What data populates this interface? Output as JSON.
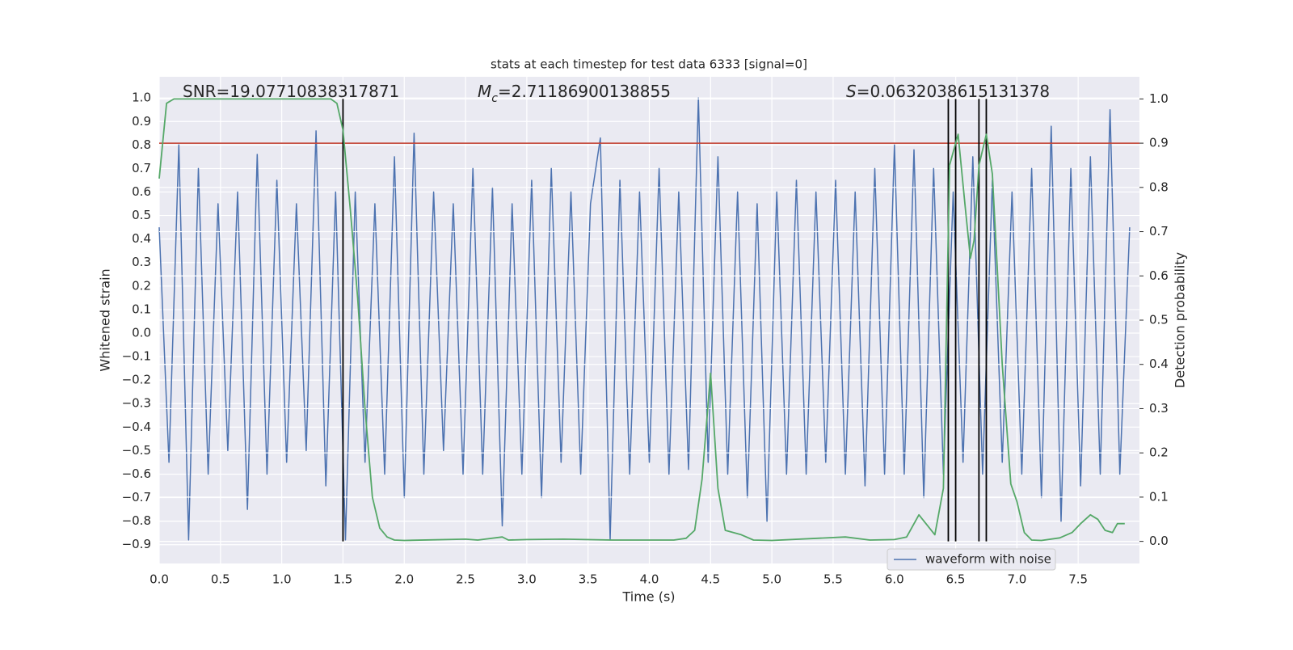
{
  "chart_data": {
    "type": "line",
    "title": "stats at each timestep for test data 6333 [signal=0]",
    "xlabel": "Time (s)",
    "ylabel": "Whitened strain",
    "y2label": "Detection probability",
    "xlim": [
      0,
      8
    ],
    "ylim": [
      -0.98,
      1.09
    ],
    "y2lim": [
      -0.05,
      1.05
    ],
    "xticks": [
      {
        "value": 0,
        "label": "0.0"
      },
      0.5,
      {
        "value": 1,
        "label": "1.0"
      },
      1.5,
      {
        "value": 2,
        "label": "2.0"
      },
      2.5,
      {
        "value": 3,
        "label": "3.0"
      },
      3.5,
      {
        "value": 4,
        "label": "4.0"
      },
      4.5,
      {
        "value": 5,
        "label": "5.0"
      },
      5.5,
      {
        "value": 6,
        "label": "6.0"
      },
      6.5,
      {
        "value": 7,
        "label": "7.0"
      },
      7.5
    ],
    "yticks": [
      {
        "value": 1,
        "label": "1.0"
      },
      0.9,
      0.8,
      0.7,
      0.6,
      0.5,
      0.4,
      0.3,
      0.2,
      0.1,
      {
        "value": 0,
        "label": "0.0"
      },
      {
        "value": -0.1,
        "label": "−0.1"
      },
      {
        "value": -0.2,
        "label": "−0.2"
      },
      {
        "value": -0.3,
        "label": "−0.3"
      },
      {
        "value": -0.4,
        "label": "−0.4"
      },
      {
        "value": -0.5,
        "label": "−0.5"
      },
      {
        "value": -0.6,
        "label": "−0.6"
      },
      {
        "value": -0.7,
        "label": "−0.7"
      },
      {
        "value": -0.8,
        "label": "−0.8"
      },
      {
        "value": -0.9,
        "label": "−0.9"
      }
    ],
    "y2ticks": [
      {
        "value": 0,
        "label": "0.0"
      },
      0.1,
      0.2,
      0.3,
      0.4,
      0.5,
      0.6,
      0.7,
      0.8,
      0.9,
      {
        "value": 1,
        "label": "1.0"
      }
    ],
    "grid": true,
    "legend": "lower right",
    "series": [
      {
        "name": "waveform with noise",
        "color": "#4c72b0",
        "x": [
          0,
          0.08,
          0.16,
          0.24,
          0.32,
          0.4,
          0.48,
          0.56,
          0.64,
          0.72,
          0.8,
          0.88,
          0.96,
          1.04,
          1.12,
          1.2,
          1.28,
          1.36,
          1.44,
          1.52,
          1.6,
          1.68,
          1.76,
          1.84,
          1.92,
          2,
          2.08,
          2.16,
          2.24,
          2.32,
          2.4,
          2.48,
          2.56,
          2.64,
          2.72,
          2.8,
          2.88,
          2.96,
          3.04,
          3.12,
          3.2,
          3.28,
          3.36,
          3.44,
          3.52,
          3.6,
          3.68,
          3.76,
          3.84,
          3.92,
          4,
          4.08,
          4.16,
          4.24,
          4.32,
          4.4,
          4.48,
          4.56,
          4.64,
          4.72,
          4.8,
          4.88,
          4.96,
          5.04,
          5.12,
          5.2,
          5.28,
          5.36,
          5.44,
          5.52,
          5.6,
          5.68,
          5.76,
          5.84,
          5.92,
          6,
          6.08,
          6.16,
          6.24,
          6.32,
          6.4,
          6.48,
          6.56,
          6.64,
          6.72,
          6.8,
          6.88,
          6.96,
          7.04,
          7.12,
          7.2,
          7.28,
          7.36,
          7.44,
          7.52,
          7.6,
          7.68,
          7.76,
          7.84,
          7.92
        ],
        "values": [
          0.45,
          -0.55,
          0.8,
          -0.88,
          0.7,
          -0.6,
          0.55,
          -0.5,
          0.6,
          -0.75,
          0.76,
          -0.6,
          0.65,
          -0.55,
          0.55,
          -0.5,
          0.86,
          -0.65,
          0.6,
          -0.88,
          0.6,
          -0.55,
          0.55,
          -0.6,
          0.75,
          -0.7,
          0.85,
          -0.6,
          0.6,
          -0.5,
          0.55,
          -0.6,
          0.7,
          -0.6,
          0.62,
          -0.82,
          0.55,
          -0.6,
          0.65,
          -0.7,
          0.7,
          -0.55,
          0.6,
          -0.6,
          0.55,
          0.83,
          -0.88,
          0.65,
          -0.6,
          0.6,
          -0.55,
          0.7,
          -0.6,
          0.6,
          -0.58,
          1.0,
          -0.55,
          0.75,
          -0.6,
          0.6,
          -0.7,
          0.55,
          -0.8,
          0.6,
          -0.6,
          0.65,
          -0.6,
          0.6,
          -0.55,
          0.65,
          -0.6,
          0.6,
          -0.65,
          0.7,
          -0.6,
          0.8,
          -0.6,
          0.78,
          -0.7,
          0.7,
          -0.6,
          0.6,
          -0.55,
          0.75,
          -0.6,
          0.65,
          -0.55,
          0.6,
          -0.6,
          0.7,
          -0.7,
          0.88,
          -0.8,
          0.7,
          -0.65,
          0.75,
          -0.6,
          0.95,
          -0.6,
          0.45
        ]
      },
      {
        "name": "Detection probability",
        "color": "#55a868",
        "axis": "y2",
        "x": [
          0,
          0.06,
          0.12,
          0.4,
          0.8,
          1.2,
          1.4,
          1.45,
          1.5,
          1.56,
          1.62,
          1.68,
          1.74,
          1.8,
          1.86,
          1.92,
          2,
          2.5,
          2.6,
          2.8,
          2.85,
          3,
          3.3,
          3.7,
          4.2,
          4.3,
          4.37,
          4.43,
          4.5,
          4.56,
          4.62,
          4.75,
          4.85,
          5,
          5.6,
          5.8,
          6,
          6.1,
          6.2,
          6.33,
          6.4,
          6.45,
          6.52,
          6.58,
          6.62,
          6.65,
          6.69,
          6.75,
          6.8,
          6.88,
          6.95,
          7,
          7.06,
          7.12,
          7.2,
          7.35,
          7.45,
          7.52,
          7.6,
          7.66,
          7.72,
          7.78,
          7.82,
          7.88
        ],
        "values": [
          0.82,
          0.99,
          1.0,
          1.0,
          1.0,
          1.0,
          1.0,
          0.99,
          0.93,
          0.75,
          0.55,
          0.3,
          0.1,
          0.03,
          0.01,
          0.003,
          0.002,
          0.005,
          0.003,
          0.01,
          0.003,
          0.004,
          0.005,
          0.003,
          0.003,
          0.007,
          0.025,
          0.14,
          0.38,
          0.12,
          0.025,
          0.015,
          0.003,
          0.002,
          0.01,
          0.003,
          0.004,
          0.01,
          0.06,
          0.015,
          0.12,
          0.85,
          0.92,
          0.75,
          0.64,
          0.68,
          0.85,
          0.92,
          0.83,
          0.4,
          0.13,
          0.09,
          0.02,
          0.003,
          0.002,
          0.008,
          0.02,
          0.04,
          0.06,
          0.05,
          0.025,
          0.02,
          0.04,
          0.04
        ]
      }
    ],
    "threshold": {
      "value": 0.9,
      "axis": "y2",
      "color": "#c03a2b"
    },
    "vlines": [
      1.5,
      6.44,
      6.5,
      6.69,
      6.75
    ],
    "vline_span": [
      0,
      1
    ],
    "vline_color": "#000000",
    "annotations": [
      {
        "parts": [
          "SNR=19.07710838317871"
        ]
      },
      {
        "parts": [
          "M",
          "c",
          "=2.71186900138855"
        ]
      },
      {
        "parts": [
          "S",
          "=0.0632038615131378"
        ]
      }
    ]
  }
}
